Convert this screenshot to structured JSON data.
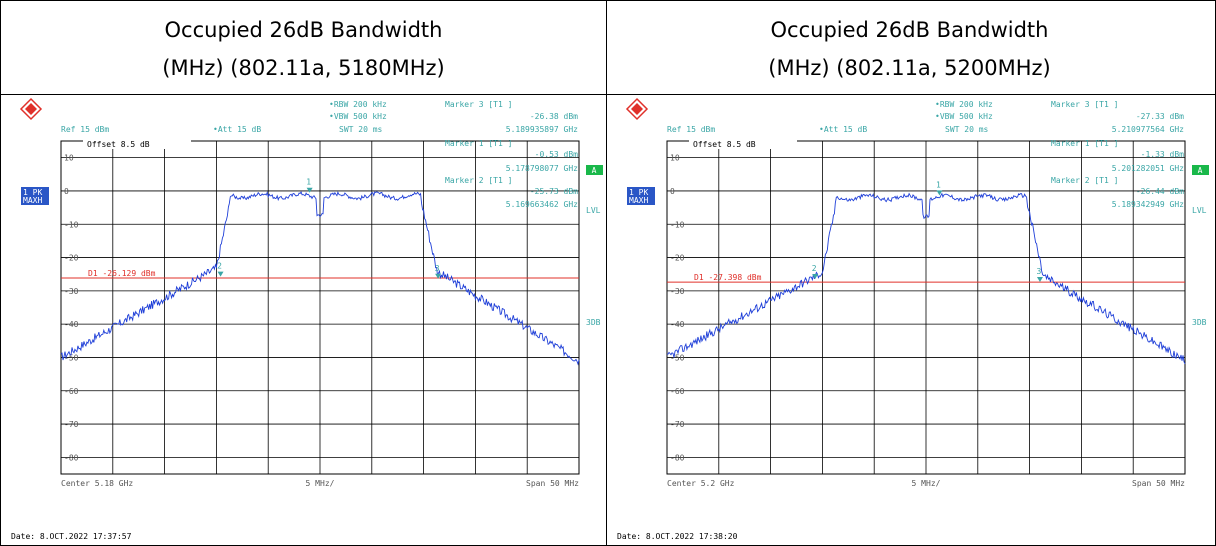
{
  "panels": [
    {
      "title_line1": "Occupied 26dB Bandwidth",
      "title_line2": "(MHz) (802.11a, 5180MHz)",
      "ref": "Ref  15 dBm",
      "att": "•Att  15 dB",
      "rbw": "•RBW  200 kHz",
      "vbw": "•VBW  500 kHz",
      "swt": "SWT  20 ms",
      "offset": "Offset   8.5  dB",
      "marker3_label": "Marker 3 [T1 ]",
      "marker3_level": "-26.38 dBm",
      "marker3_freq": "5.189935897 GHz",
      "marker1_label": "Marker 1 [T1 ]",
      "marker1_level": "-0.53 dBm",
      "marker1_freq": "5.178798077 GHz",
      "marker2_label": "Marker 2 [T1 ]",
      "marker2_level": "-25.73 dBm",
      "marker2_freq": "5.169663462 GHz",
      "d1_label": "D1 -26.129 dBm",
      "center": "Center  5.18 GHz",
      "span_div": "5 MHz/",
      "span": "Span  50 MHz",
      "date": "Date:  8.OCT.2022  17:37:57",
      "display_line": -26.129,
      "plateau": -1.5,
      "notch_x": 25.0,
      "m1": {
        "x": 24.0,
        "y": -0.53
      },
      "m2": {
        "x": 15.4,
        "y": -25.73
      },
      "m3": {
        "x": 36.4,
        "y": -26.38
      }
    },
    {
      "title_line1": "Occupied 26dB Bandwidth",
      "title_line2": "(MHz) (802.11a, 5200MHz)",
      "ref": "Ref  15 dBm",
      "att": "•Att  15 dB",
      "rbw": "•RBW  200 kHz",
      "vbw": "•VBW  500 kHz",
      "swt": "SWT  20 ms",
      "offset": "Offset   8.5  dB",
      "marker3_label": "Marker 3 [T1 ]",
      "marker3_level": "-27.33 dBm",
      "marker3_freq": "5.210977564 GHz",
      "marker1_label": "Marker 1 [T1 ]",
      "marker1_level": "-1.33 dBm",
      "marker1_freq": "5.201282051 GHz",
      "marker2_label": "Marker 2 [T1 ]",
      "marker2_level": "-26.44 dBm",
      "marker2_freq": "5.189342949 GHz",
      "d1_label": "D1 -27.398 dBm",
      "center": "Center  5.2 GHz",
      "span_div": "5 MHz/",
      "span": "Span  50 MHz",
      "date": "Date:  8.OCT.2022  17:38:20",
      "display_line": -27.398,
      "plateau": -2.0,
      "notch_x": 25.0,
      "m1": {
        "x": 26.3,
        "y": -1.33
      },
      "m2": {
        "x": 14.3,
        "y": -26.44
      },
      "m3": {
        "x": 36.0,
        "y": -27.33
      }
    }
  ],
  "y_ticks": [
    "10",
    "0",
    "-10",
    "-20",
    "-30",
    "-40",
    "-50",
    "-60",
    "-70",
    "-80"
  ],
  "side_labels": {
    "pk": "1 PK",
    "maxh": "MAXH",
    "lvl": "LVL",
    "a": "A",
    "3db": "3DB"
  },
  "chart_data": [
    {
      "type": "line",
      "title": "Occupied 26dB Bandwidth (MHz) (802.11a, 5180MHz)",
      "xlabel": "Center 5.18 GHz / Span 50 MHz",
      "ylabel": "",
      "xlim": [
        5.155,
        5.205
      ],
      "ylim": [
        -90,
        10
      ],
      "series": [
        {
          "x": [
            5.155,
            5.165,
            5.17,
            5.1715,
            5.1785,
            5.18,
            5.1865,
            5.1885,
            5.19,
            5.195,
            5.205
          ],
          "values": [
            -50,
            -34,
            -29,
            -2,
            -1,
            -3,
            -2,
            -3,
            -28,
            -32,
            -51
          ]
        }
      ],
      "markers": [
        {
          "name": "Marker 1",
          "freq_ghz": 5.178798077,
          "level_dbm": -0.53
        },
        {
          "name": "Marker 2",
          "freq_ghz": 5.169663462,
          "level_dbm": -25.73
        },
        {
          "name": "Marker 3",
          "freq_ghz": 5.189935897,
          "level_dbm": -26.38
        }
      ],
      "display_line_dbm": -26.129
    },
    {
      "type": "line",
      "title": "Occupied 26dB Bandwidth (MHz) (802.11a, 5200MHz)",
      "xlabel": "Center 5.2 GHz / Span 50 MHz",
      "ylabel": "",
      "xlim": [
        5.175,
        5.225
      ],
      "ylim": [
        -90,
        10
      ],
      "series": [
        {
          "x": [
            5.175,
            5.185,
            5.189,
            5.1915,
            5.1985,
            5.2,
            5.2065,
            5.2085,
            5.2105,
            5.215,
            5.225
          ],
          "values": [
            -49,
            -34,
            -29,
            -2,
            -1,
            -3,
            -2,
            -3,
            -28,
            -33,
            -50
          ]
        }
      ],
      "markers": [
        {
          "name": "Marker 1",
          "freq_ghz": 5.201282051,
          "level_dbm": -1.33
        },
        {
          "name": "Marker 2",
          "freq_ghz": 5.189342949,
          "level_dbm": -26.44
        },
        {
          "name": "Marker 3",
          "freq_ghz": 5.210977564,
          "level_dbm": -27.33
        }
      ],
      "display_line_dbm": -27.398
    }
  ]
}
